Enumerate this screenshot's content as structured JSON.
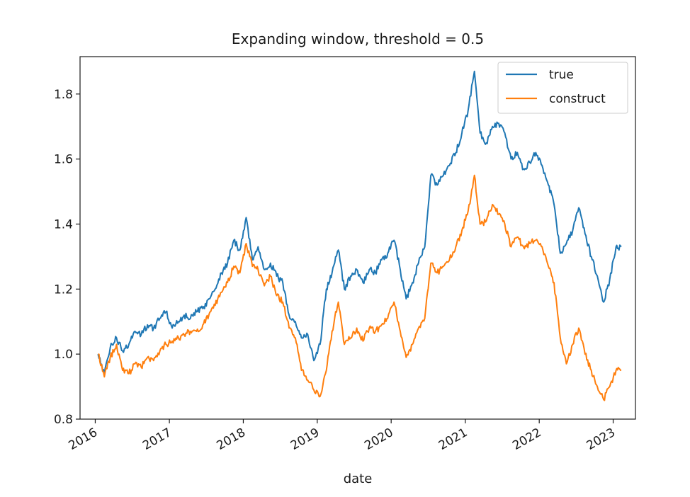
{
  "chart_data": {
    "type": "line",
    "title": "Expanding window, threshold = 0.5",
    "xlabel": "date",
    "ylabel": "",
    "x_range": [
      "2015-10-18",
      "2023-04-21"
    ],
    "ylim": [
      0.8,
      1.915
    ],
    "yticks": [
      0.8,
      1.0,
      1.2,
      1.4,
      1.6,
      1.8
    ],
    "ytick_labels": [
      "0.8",
      "1.0",
      "1.2",
      "1.4",
      "1.6",
      "1.8"
    ],
    "xticks": [
      "2016-01-01",
      "2017-01-01",
      "2018-01-01",
      "2019-01-01",
      "2020-01-01",
      "2021-01-01",
      "2022-01-01",
      "2023-01-01"
    ],
    "xtick_labels": [
      "2016",
      "2017",
      "2018",
      "2019",
      "2020",
      "2021",
      "2022",
      "2023"
    ],
    "grid": false,
    "legend_position": "top-right",
    "series": [
      {
        "name": "true",
        "color": "#1f77b4",
        "points": [
          [
            "2016-01-15",
            1.0
          ],
          [
            "2016-02-15",
            0.94
          ],
          [
            "2016-03-15",
            1.02
          ],
          [
            "2016-04-15",
            1.05
          ],
          [
            "2016-05-15",
            1.01
          ],
          [
            "2016-06-15",
            1.03
          ],
          [
            "2016-07-15",
            1.07
          ],
          [
            "2016-08-15",
            1.06
          ],
          [
            "2016-09-15",
            1.09
          ],
          [
            "2016-10-15",
            1.08
          ],
          [
            "2016-11-15",
            1.11
          ],
          [
            "2016-12-15",
            1.13
          ],
          [
            "2017-01-15",
            1.08
          ],
          [
            "2017-02-15",
            1.1
          ],
          [
            "2017-03-15",
            1.12
          ],
          [
            "2017-04-15",
            1.11
          ],
          [
            "2017-05-15",
            1.13
          ],
          [
            "2017-06-15",
            1.14
          ],
          [
            "2017-07-15",
            1.17
          ],
          [
            "2017-08-15",
            1.2
          ],
          [
            "2017-09-15",
            1.25
          ],
          [
            "2017-10-15",
            1.28
          ],
          [
            "2017-11-15",
            1.35
          ],
          [
            "2017-12-15",
            1.32
          ],
          [
            "2018-01-15",
            1.42
          ],
          [
            "2018-02-15",
            1.29
          ],
          [
            "2018-03-15",
            1.33
          ],
          [
            "2018-04-15",
            1.26
          ],
          [
            "2018-05-15",
            1.28
          ],
          [
            "2018-06-15",
            1.24
          ],
          [
            "2018-07-15",
            1.22
          ],
          [
            "2018-08-15",
            1.12
          ],
          [
            "2018-09-15",
            1.1
          ],
          [
            "2018-10-15",
            1.05
          ],
          [
            "2018-11-15",
            1.06
          ],
          [
            "2018-12-15",
            0.98
          ],
          [
            "2019-01-15",
            1.03
          ],
          [
            "2019-02-15",
            1.2
          ],
          [
            "2019-03-15",
            1.25
          ],
          [
            "2019-04-15",
            1.32
          ],
          [
            "2019-05-15",
            1.2
          ],
          [
            "2019-06-15",
            1.24
          ],
          [
            "2019-07-15",
            1.26
          ],
          [
            "2019-08-15",
            1.22
          ],
          [
            "2019-09-15",
            1.26
          ],
          [
            "2019-10-15",
            1.25
          ],
          [
            "2019-11-15",
            1.29
          ],
          [
            "2019-12-15",
            1.31
          ],
          [
            "2020-01-15",
            1.35
          ],
          [
            "2020-02-15",
            1.26
          ],
          [
            "2020-03-15",
            1.17
          ],
          [
            "2020-04-15",
            1.22
          ],
          [
            "2020-05-15",
            1.28
          ],
          [
            "2020-06-15",
            1.33
          ],
          [
            "2020-07-15",
            1.55
          ],
          [
            "2020-08-15",
            1.52
          ],
          [
            "2020-09-15",
            1.55
          ],
          [
            "2020-10-15",
            1.58
          ],
          [
            "2020-11-15",
            1.62
          ],
          [
            "2020-12-15",
            1.68
          ],
          [
            "2021-01-15",
            1.75
          ],
          [
            "2021-02-15",
            1.87
          ],
          [
            "2021-03-15",
            1.68
          ],
          [
            "2021-04-15",
            1.65
          ],
          [
            "2021-05-15",
            1.7
          ],
          [
            "2021-06-15",
            1.71
          ],
          [
            "2021-07-15",
            1.68
          ],
          [
            "2021-08-15",
            1.6
          ],
          [
            "2021-09-15",
            1.62
          ],
          [
            "2021-10-15",
            1.57
          ],
          [
            "2021-11-15",
            1.59
          ],
          [
            "2021-12-15",
            1.62
          ],
          [
            "2022-01-15",
            1.58
          ],
          [
            "2022-02-15",
            1.52
          ],
          [
            "2022-03-15",
            1.46
          ],
          [
            "2022-04-15",
            1.31
          ],
          [
            "2022-05-15",
            1.34
          ],
          [
            "2022-06-15",
            1.38
          ],
          [
            "2022-07-15",
            1.45
          ],
          [
            "2022-08-15",
            1.37
          ],
          [
            "2022-09-15",
            1.3
          ],
          [
            "2022-10-15",
            1.24
          ],
          [
            "2022-11-15",
            1.16
          ],
          [
            "2022-12-15",
            1.23
          ],
          [
            "2023-01-15",
            1.33
          ],
          [
            "2023-02-10",
            1.33
          ]
        ]
      },
      {
        "name": "construct",
        "color": "#ff7f0e",
        "points": [
          [
            "2016-01-15",
            1.0
          ],
          [
            "2016-02-15",
            0.93
          ],
          [
            "2016-03-15",
            0.99
          ],
          [
            "2016-04-15",
            1.03
          ],
          [
            "2016-05-15",
            0.95
          ],
          [
            "2016-06-15",
            0.94
          ],
          [
            "2016-07-15",
            0.97
          ],
          [
            "2016-08-15",
            0.96
          ],
          [
            "2016-09-15",
            0.99
          ],
          [
            "2016-10-15",
            0.98
          ],
          [
            "2016-11-15",
            1.01
          ],
          [
            "2016-12-15",
            1.03
          ],
          [
            "2017-01-15",
            1.04
          ],
          [
            "2017-02-15",
            1.05
          ],
          [
            "2017-03-15",
            1.06
          ],
          [
            "2017-04-15",
            1.07
          ],
          [
            "2017-05-15",
            1.07
          ],
          [
            "2017-06-15",
            1.09
          ],
          [
            "2017-07-15",
            1.12
          ],
          [
            "2017-08-15",
            1.15
          ],
          [
            "2017-09-15",
            1.19
          ],
          [
            "2017-10-15",
            1.22
          ],
          [
            "2017-11-15",
            1.27
          ],
          [
            "2017-12-15",
            1.25
          ],
          [
            "2018-01-15",
            1.34
          ],
          [
            "2018-02-15",
            1.27
          ],
          [
            "2018-03-15",
            1.26
          ],
          [
            "2018-04-15",
            1.21
          ],
          [
            "2018-05-15",
            1.24
          ],
          [
            "2018-06-15",
            1.18
          ],
          [
            "2018-07-15",
            1.16
          ],
          [
            "2018-08-15",
            1.08
          ],
          [
            "2018-09-15",
            1.05
          ],
          [
            "2018-10-15",
            0.95
          ],
          [
            "2018-11-15",
            0.92
          ],
          [
            "2018-12-15",
            0.89
          ],
          [
            "2019-01-15",
            0.87
          ],
          [
            "2019-02-15",
            0.95
          ],
          [
            "2019-03-15",
            1.07
          ],
          [
            "2019-04-15",
            1.16
          ],
          [
            "2019-05-15",
            1.03
          ],
          [
            "2019-06-15",
            1.05
          ],
          [
            "2019-07-15",
            1.08
          ],
          [
            "2019-08-15",
            1.04
          ],
          [
            "2019-09-15",
            1.08
          ],
          [
            "2019-10-15",
            1.07
          ],
          [
            "2019-11-15",
            1.09
          ],
          [
            "2019-12-15",
            1.11
          ],
          [
            "2020-01-15",
            1.16
          ],
          [
            "2020-02-15",
            1.07
          ],
          [
            "2020-03-15",
            0.99
          ],
          [
            "2020-04-15",
            1.03
          ],
          [
            "2020-05-15",
            1.08
          ],
          [
            "2020-06-15",
            1.11
          ],
          [
            "2020-07-15",
            1.28
          ],
          [
            "2020-08-15",
            1.25
          ],
          [
            "2020-09-15",
            1.27
          ],
          [
            "2020-10-15",
            1.29
          ],
          [
            "2020-11-15",
            1.33
          ],
          [
            "2020-12-15",
            1.38
          ],
          [
            "2021-01-15",
            1.44
          ],
          [
            "2021-02-15",
            1.55
          ],
          [
            "2021-03-15",
            1.4
          ],
          [
            "2021-04-15",
            1.41
          ],
          [
            "2021-05-15",
            1.46
          ],
          [
            "2021-06-15",
            1.43
          ],
          [
            "2021-07-15",
            1.4
          ],
          [
            "2021-08-15",
            1.33
          ],
          [
            "2021-09-15",
            1.36
          ],
          [
            "2021-10-15",
            1.33
          ],
          [
            "2021-11-15",
            1.34
          ],
          [
            "2021-12-15",
            1.35
          ],
          [
            "2022-01-15",
            1.33
          ],
          [
            "2022-02-15",
            1.27
          ],
          [
            "2022-03-15",
            1.22
          ],
          [
            "2022-04-15",
            1.05
          ],
          [
            "2022-05-15",
            0.97
          ],
          [
            "2022-06-15",
            1.03
          ],
          [
            "2022-07-15",
            1.08
          ],
          [
            "2022-08-15",
            1.0
          ],
          [
            "2022-09-15",
            0.95
          ],
          [
            "2022-10-15",
            0.9
          ],
          [
            "2022-11-15",
            0.86
          ],
          [
            "2022-12-15",
            0.9
          ],
          [
            "2023-01-15",
            0.95
          ],
          [
            "2023-02-10",
            0.95
          ]
        ]
      }
    ]
  }
}
